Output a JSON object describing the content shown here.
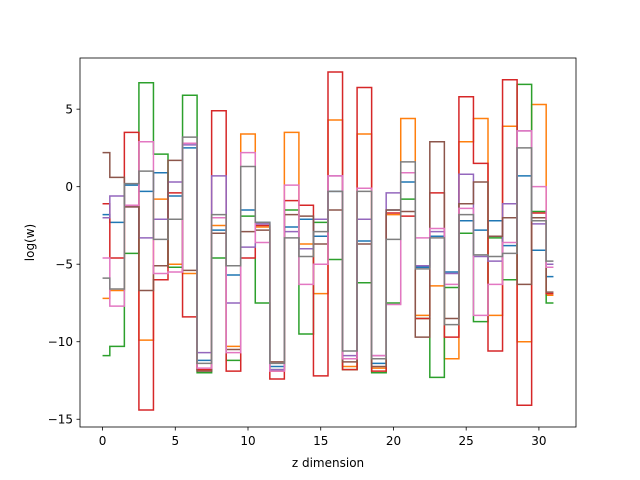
{
  "chart_data": {
    "type": "line",
    "drawstyle": "steps-mid",
    "title": "",
    "xlabel": "z dimension",
    "ylabel": "log(w)",
    "xlim": [
      -1.55,
      32.55
    ],
    "ylim": [
      -15.5,
      8.3
    ],
    "xticks": [
      0,
      5,
      10,
      15,
      20,
      25,
      30
    ],
    "yticks": [
      -15,
      -10,
      -5,
      0,
      5
    ],
    "grid": false,
    "x": [
      0,
      1,
      2,
      3,
      4,
      5,
      6,
      7,
      8,
      9,
      10,
      11,
      12,
      13,
      14,
      15,
      16,
      17,
      18,
      19,
      20,
      21,
      22,
      23,
      24,
      25,
      26,
      27,
      28,
      29,
      30,
      31
    ],
    "series": [
      {
        "color": "#1f77b4",
        "values": [
          -1.8,
          -2.3,
          0.1,
          -0.3,
          0.9,
          -0.6,
          2.5,
          -11.2,
          -2.8,
          -5.7,
          -1.5,
          -2.3,
          -11.6,
          -2.6,
          -2.1,
          -3.2,
          -0.3,
          -11.1,
          -3.5,
          -11.4,
          -1.5,
          0.3,
          -5.2,
          -3.2,
          -5.5,
          -2.2,
          -2.8,
          -2.2,
          -3.8,
          0.7,
          -4.1,
          -5.8
        ]
      },
      {
        "color": "#ff7f0e",
        "values": [
          -7.2,
          -6.7,
          -1.2,
          -9.9,
          -0.8,
          -5.0,
          -5.6,
          -11.8,
          -2.5,
          -10.3,
          3.4,
          -2.6,
          -11.9,
          3.5,
          -3.7,
          -6.9,
          4.3,
          -11.6,
          3.4,
          -11.7,
          -1.8,
          4.4,
          -8.3,
          -6.4,
          -11.1,
          2.9,
          4.4,
          -8.3,
          3.9,
          -10.0,
          5.3,
          -7.0
        ]
      },
      {
        "color": "#2ca02c",
        "values": [
          -10.9,
          -10.3,
          -4.3,
          6.7,
          2.1,
          -5.2,
          5.9,
          -12.0,
          -4.6,
          -11.2,
          -1.9,
          -7.5,
          -11.8,
          -1.5,
          -9.5,
          -2.3,
          -4.7,
          -11.8,
          -6.2,
          -12.0,
          -7.5,
          -0.8,
          -8.5,
          -12.3,
          -6.5,
          -3.0,
          -8.7,
          -3.3,
          -6.0,
          6.6,
          -1.6,
          -7.5
        ]
      },
      {
        "color": "#d62728",
        "values": [
          -1.1,
          -4.6,
          3.5,
          -14.4,
          -6.0,
          -0.4,
          -8.4,
          -11.8,
          4.9,
          -11.9,
          -4.6,
          -2.5,
          -12.4,
          -0.9,
          -1.2,
          -12.2,
          7.4,
          -11.8,
          6.4,
          -11.9,
          -1.7,
          -1.9,
          -8.5,
          -0.4,
          -9.7,
          5.8,
          1.5,
          -10.6,
          6.9,
          -14.1,
          -1.7,
          -6.9
        ]
      },
      {
        "color": "#9467bd",
        "values": [
          -2.0,
          -0.6,
          -1.3,
          -3.3,
          -2.1,
          0.3,
          2.7,
          -10.7,
          0.7,
          -7.5,
          -3.9,
          -2.4,
          -11.8,
          -2.9,
          -4.0,
          -2.1,
          0.7,
          -10.9,
          -2.1,
          -10.9,
          -0.4,
          0.9,
          -5.1,
          -2.9,
          -5.6,
          0.8,
          -4.5,
          -4.8,
          -1.1,
          3.6,
          -2.4,
          -5.0
        ]
      },
      {
        "color": "#8c564b",
        "values": [
          2.2,
          0.6,
          -1.3,
          -6.7,
          -5.1,
          1.7,
          -5.4,
          -11.9,
          -3.0,
          -10.5,
          -2.9,
          -2.8,
          -11.3,
          -1.8,
          -1.9,
          -3.7,
          -1.5,
          -11.3,
          -3.7,
          -11.6,
          -1.5,
          -1.6,
          -9.7,
          2.9,
          -8.5,
          -1.1,
          0.3,
          -3.2,
          -2.0,
          -6.3,
          -2.0,
          -6.8
        ]
      },
      {
        "color": "#e377c2",
        "values": [
          -4.6,
          -7.7,
          -1.2,
          2.9,
          -5.6,
          -5.5,
          2.8,
          -11.7,
          -2.0,
          -10.7,
          2.2,
          -3.6,
          -11.9,
          0.1,
          -6.3,
          -5.0,
          0.7,
          -11.1,
          -0.1,
          -10.9,
          -7.6,
          0.9,
          -3.3,
          -2.7,
          -6.3,
          -1.4,
          -8.3,
          -6.3,
          -3.6,
          3.6,
          0.0,
          -5.2
        ]
      },
      {
        "color": "#7f7f7f",
        "values": [
          -5.9,
          -6.6,
          0.2,
          1.0,
          -3.4,
          -2.1,
          3.2,
          -11.4,
          -1.8,
          -5.1,
          1.3,
          -2.3,
          -11.4,
          -3.3,
          -4.5,
          -2.9,
          -0.3,
          -10.6,
          -0.3,
          -11.1,
          -3.4,
          1.6,
          -5.3,
          -3.3,
          -8.9,
          -1.8,
          -4.4,
          -4.5,
          -4.3,
          2.5,
          -2.2,
          -4.8
        ]
      }
    ]
  }
}
